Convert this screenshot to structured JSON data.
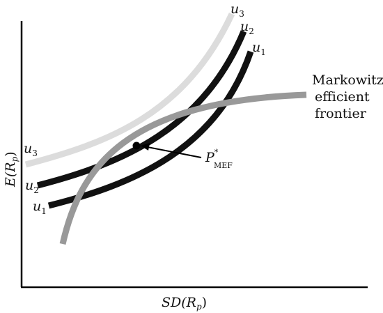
{
  "axes": {
    "y_label": {
      "base": "E(R",
      "sub": "p",
      "close": ")"
    },
    "x_label": {
      "base": "SD(R",
      "sub": "p",
      "close": ")"
    }
  },
  "curves": {
    "u1": {
      "base": "u",
      "sub": "1",
      "color": "#111111"
    },
    "u2": {
      "base": "u",
      "sub": "2",
      "color": "#111111"
    },
    "u3": {
      "base": "u",
      "sub": "3",
      "color": "#dcdcdc"
    },
    "frontier": {
      "label_lines": [
        "Markowitz",
        "efficient",
        "frontier"
      ],
      "color": "#999999"
    }
  },
  "tangency_point": {
    "base": "P",
    "sup": "*",
    "sub": "MEF"
  }
}
